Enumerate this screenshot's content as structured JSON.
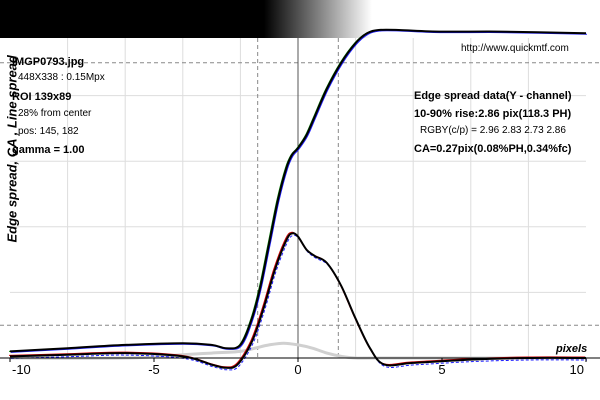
{
  "info": {
    "file_name": "IMGP0793.jpg",
    "image_size": "448X338 : 0.15Mpx",
    "roi": "ROI 139x89",
    "from_center": "28% from center",
    "pos": "pos: 145, 182",
    "gamma": "gamma = 1.00"
  },
  "header": {
    "url": "http://www.quickmtf.com"
  },
  "stats": {
    "title": "Edge spread data(Y - channel)",
    "rise": "10-90% rise:2.86 pix(118.3 PH)",
    "rgby": "RGBY(c/p) = 2.96 2.83 2.73 2.86",
    "ca": "CA=0.27pix(0.08%PH,0.34%fc)"
  },
  "chart_data": {
    "type": "line",
    "ylabel": "Edge spread, CA , Line spread",
    "xlabel": "pixels",
    "xlim": [
      -10,
      10
    ],
    "ylim": [
      0,
      1
    ],
    "x_ticks": [
      "-10",
      "-5",
      "0",
      "5",
      "10"
    ],
    "grid": true,
    "markers_x": [
      -1.4,
      1.4
    ],
    "series": [
      {
        "role": "edge-spread",
        "x": [
          -10,
          -8,
          -6,
          -4,
          -3,
          -2.5,
          -2,
          -1.6,
          -1.3,
          -1,
          -0.7,
          -0.4,
          -0.2,
          0,
          0.3,
          0.6,
          1,
          1.5,
          2,
          2.4,
          2.8,
          3.5,
          5,
          7,
          10
        ],
        "y": [
          0.02,
          0.03,
          0.04,
          0.045,
          0.04,
          0.03,
          0.04,
          0.12,
          0.22,
          0.35,
          0.48,
          0.58,
          0.62,
          0.64,
          0.68,
          0.74,
          0.82,
          0.9,
          0.96,
          0.99,
          1.0,
          1.0,
          0.995,
          0.995,
          0.99
        ]
      },
      {
        "role": "line-spread",
        "x": [
          -10,
          -8,
          -6,
          -4,
          -3,
          -2.5,
          -2.1,
          -1.6,
          -1.2,
          -0.8,
          -0.4,
          -0.2,
          0,
          0.3,
          0.6,
          1,
          1.5,
          2,
          2.5,
          3,
          4,
          6,
          8,
          10
        ],
        "y": [
          0.005,
          0.01,
          0.015,
          0.005,
          -0.02,
          -0.03,
          -0.02,
          0.05,
          0.15,
          0.27,
          0.36,
          0.38,
          0.37,
          0.33,
          0.31,
          0.29,
          0.22,
          0.12,
          0.03,
          -0.02,
          -0.015,
          -0.005,
          0.0,
          0.0
        ]
      },
      {
        "role": "line-spread-reference",
        "x": [
          -10,
          -6,
          -4,
          -3,
          -2,
          -1.5,
          -1,
          -0.5,
          0,
          0.5,
          1,
          1.5,
          2,
          3,
          10
        ],
        "y": [
          0.0,
          0.0,
          0.01,
          0.015,
          0.02,
          0.03,
          0.04,
          0.045,
          0.04,
          0.03,
          0.015,
          0.005,
          0.0,
          0.0,
          0.0
        ]
      }
    ],
    "colors": {
      "edge_spread": "#000000",
      "red_channel": "#cc0000",
      "blue_channel": "#1a1aff",
      "green_channel": "#008000",
      "reference": "#d0d0d0",
      "gradient_start": "#000000",
      "gradient_end": "#ffffff"
    }
  }
}
